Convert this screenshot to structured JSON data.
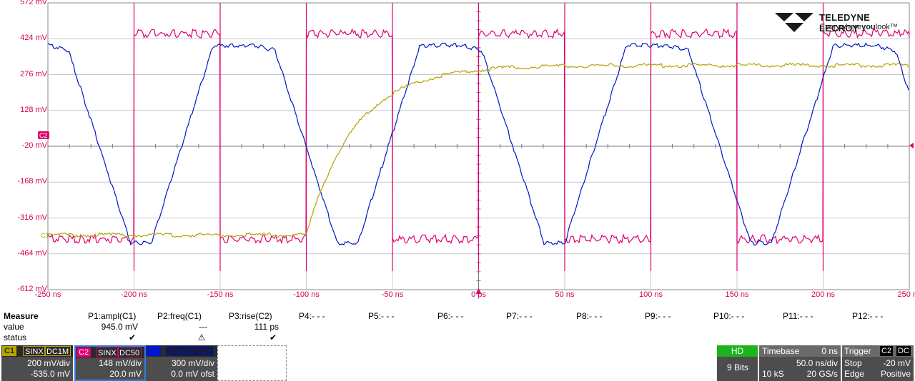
{
  "y_axis_labels": [
    "572 mV",
    "424 mV",
    "276 mV",
    "128 mV",
    "-20 mV",
    "-168 mV",
    "-316 mV",
    "-464 mV",
    "-612 mV"
  ],
  "x_axis_labels": [
    "-250 ns",
    "-200 ns",
    "-150 ns",
    "-100 ns",
    "-50 ns",
    "0 ps",
    "50 ns",
    "100 ns",
    "150 ns",
    "200 ns",
    "250 ns"
  ],
  "markers": {
    "c1": "C1",
    "c2": "C2"
  },
  "logo": {
    "brand": "TELEDYNE LECROY",
    "tag_pre": "Everywhere",
    "tag_bold": "you",
    "tag_post": "look",
    "tm": "™"
  },
  "colors": {
    "c1": "#b5a300",
    "c2": "#e0006e",
    "c3": "#0018c8",
    "grid": "#c8c8c8",
    "axis_label": "#d6005a",
    "hd_green": "#1db31d"
  },
  "measure": {
    "title": "Measure",
    "row_value": "value",
    "row_status": "status",
    "params": [
      {
        "name": "P1:ampl(C1)",
        "value": "945.0 mV",
        "status": "✔"
      },
      {
        "name": "P2:freq(C1)",
        "value": "---",
        "status": "⚠"
      },
      {
        "name": "P3:rise(C2)",
        "value": "111 ps",
        "status": "✔"
      },
      {
        "name": "P4:- - -",
        "value": "",
        "status": ""
      },
      {
        "name": "P5:- - -",
        "value": "",
        "status": ""
      },
      {
        "name": "P6:- - -",
        "value": "",
        "status": ""
      },
      {
        "name": "P7:- - -",
        "value": "",
        "status": ""
      },
      {
        "name": "P8:- - -",
        "value": "",
        "status": ""
      },
      {
        "name": "P9:- - -",
        "value": "",
        "status": ""
      },
      {
        "name": "P10:- - -",
        "value": "",
        "status": ""
      },
      {
        "name": "P11:- - -",
        "value": "",
        "status": ""
      },
      {
        "name": "P12:- - -",
        "value": "",
        "status": ""
      }
    ]
  },
  "channels": [
    {
      "tag": "C1",
      "coupling1": "SINX",
      "coupling2": "DC1M",
      "vdiv": "200 mV/div",
      "offset": "-535.0 mV"
    },
    {
      "tag": "C2",
      "coupling1": "SINX",
      "coupling2": "DC50",
      "vdiv": "148 mV/div",
      "offset": "20.0 mV"
    },
    {
      "tag": "C3",
      "coupling1": "SINX",
      "coupling2": "DC1M",
      "vdiv": "300 mV/div",
      "offset": "0.0 mV ofst"
    }
  ],
  "hd": {
    "label": "HD",
    "bits": "9 Bits"
  },
  "timebase": {
    "label": "Timebase",
    "delay": "0 ns",
    "tdiv": "50.0 ns/div",
    "samples": "10 kS",
    "rate": "20 GS/s"
  },
  "trigger": {
    "label": "Trigger",
    "source": "C2",
    "coupling": "DC",
    "mode": "Stop",
    "level": "-20 mV",
    "type": "Edge",
    "slope": "Positive"
  }
}
